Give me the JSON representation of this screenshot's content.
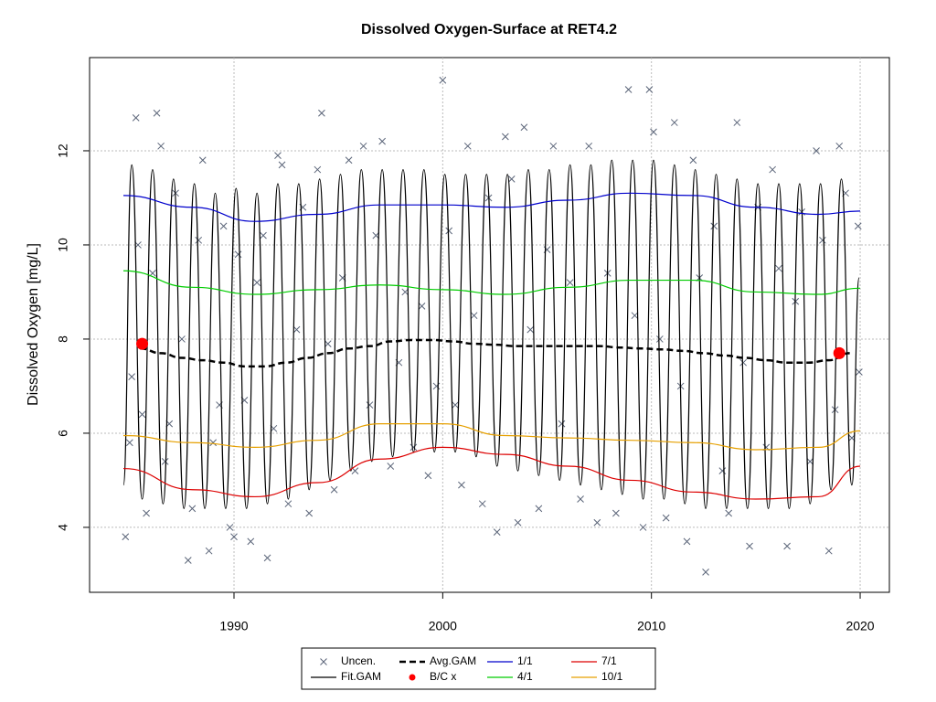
{
  "chart_data": {
    "type": "line",
    "title": "Dissolved Oxygen-Surface at RET4.2",
    "y_label": "Dissolved Oxygen [mg/L]",
    "xlim": [
      1983.08,
      2021.4
    ],
    "ylim": [
      2.62,
      13.98
    ],
    "xticks": [
      1990,
      2000,
      2010,
      2020
    ],
    "yticks": [
      4,
      6,
      8,
      10,
      12
    ],
    "grid": true,
    "legend": "bottom",
    "series": [
      {
        "name": "Uncen.",
        "color": "#5a6478",
        "marker": "x",
        "x": [
          1984.8,
          1985.0,
          1985.1,
          1985.3,
          1985.4,
          1985.6,
          1985.8,
          1986.1,
          1986.3,
          1986.5,
          1986.7,
          1986.9,
          1987.2,
          1987.5,
          1987.8,
          1988.0,
          1988.3,
          1988.5,
          1988.8,
          1989.0,
          1989.3,
          1989.5,
          1989.8,
          1990.0,
          1990.2,
          1990.5,
          1990.8,
          1991.1,
          1991.4,
          1991.6,
          1991.9,
          1992.1,
          1992.3,
          1992.6,
          1993.0,
          1993.3,
          1993.6,
          1994.0,
          1994.2,
          1994.5,
          1994.8,
          1995.2,
          1995.5,
          1995.8,
          1996.2,
          1996.5,
          1996.8,
          1997.1,
          1997.5,
          1997.9,
          1998.2,
          1998.6,
          1999.0,
          1999.3,
          1999.7,
          2000.0,
          2000.3,
          2000.6,
          2000.9,
          2001.2,
          2001.5,
          2001.9,
          2002.2,
          2002.6,
          2003.0,
          2003.3,
          2003.6,
          2003.9,
          2004.2,
          2004.6,
          2005.0,
          2005.3,
          2005.7,
          2006.1,
          2006.6,
          2007.0,
          2007.4,
          2007.9,
          2008.3,
          2008.9,
          2009.2,
          2009.6,
          2009.9,
          2010.1,
          2010.4,
          2010.7,
          2011.1,
          2011.4,
          2011.7,
          2012.0,
          2012.3,
          2012.6,
          2013.0,
          2013.4,
          2013.7,
          2014.1,
          2014.4,
          2014.7,
          2015.1,
          2015.5,
          2015.8,
          2016.1,
          2016.5,
          2016.9,
          2017.2,
          2017.6,
          2017.9,
          2018.2,
          2018.5,
          2018.8,
          2019.0,
          2019.3,
          2019.6,
          2019.9,
          2019.95
        ],
        "values": [
          3.8,
          5.8,
          7.2,
          12.7,
          10.0,
          6.4,
          4.3,
          9.4,
          12.8,
          12.1,
          5.4,
          6.2,
          11.1,
          8.0,
          3.3,
          4.4,
          10.1,
          11.8,
          3.5,
          5.8,
          6.6,
          10.4,
          4.0,
          3.8,
          9.8,
          6.7,
          3.7,
          9.2,
          10.2,
          3.35,
          6.1,
          11.9,
          11.7,
          4.5,
          8.2,
          10.8,
          4.3,
          11.6,
          12.8,
          7.9,
          4.8,
          9.3,
          11.8,
          5.2,
          12.1,
          6.6,
          10.2,
          12.2,
          5.3,
          7.5,
          9.0,
          5.7,
          8.7,
          5.1,
          7.0,
          13.5,
          10.3,
          6.6,
          4.9,
          12.1,
          8.5,
          4.5,
          11.0,
          3.9,
          12.3,
          11.4,
          4.1,
          12.5,
          8.2,
          4.4,
          9.9,
          12.1,
          6.2,
          9.2,
          4.6,
          12.1,
          4.1,
          9.4,
          4.3,
          13.3,
          8.5,
          4.0,
          13.3,
          12.4,
          8.0,
          4.2,
          12.6,
          7.0,
          3.7,
          11.8,
          9.3,
          3.05,
          10.4,
          5.2,
          4.3,
          12.6,
          7.5,
          3.6,
          10.8,
          5.7,
          11.6,
          9.5,
          3.6,
          8.8,
          10.7,
          5.4,
          12.0,
          10.1,
          3.5,
          6.5,
          12.1,
          11.1,
          5.9,
          10.4,
          7.3
        ]
      },
      {
        "name": "Fit.GAM",
        "color": "#000000",
        "marker": "smooth",
        "x": [
          1984.7,
          1985.1,
          1985.6,
          1986.1,
          1986.6,
          1987.1,
          1987.6,
          1988.1,
          1988.6,
          1989.1,
          1989.6,
          1990.1,
          1990.6,
          1991.1,
          1991.6,
          1992.1,
          1992.6,
          1993.1,
          1993.6,
          1994.1,
          1994.6,
          1995.1,
          1995.6,
          1996.1,
          1996.6,
          1997.1,
          1997.6,
          1998.1,
          1998.6,
          1999.1,
          1999.6,
          2000.1,
          2000.6,
          2001.1,
          2001.6,
          2002.1,
          2002.6,
          2003.1,
          2003.6,
          2004.1,
          2004.6,
          2005.1,
          2005.6,
          2006.1,
          2006.6,
          2007.1,
          2007.6,
          2008.1,
          2008.6,
          2009.1,
          2009.6,
          2010.1,
          2010.6,
          2011.1,
          2011.6,
          2012.1,
          2012.6,
          2013.1,
          2013.6,
          2014.1,
          2014.6,
          2015.1,
          2015.6,
          2016.1,
          2016.6,
          2017.1,
          2017.6,
          2018.1,
          2018.6,
          2019.1,
          2019.6,
          2019.95
        ],
        "values": [
          4.9,
          11.7,
          4.6,
          11.6,
          4.5,
          11.4,
          4.4,
          11.3,
          4.4,
          11.1,
          4.4,
          11.2,
          4.4,
          11.1,
          4.5,
          11.3,
          4.6,
          11.3,
          4.8,
          11.4,
          5.0,
          11.5,
          5.2,
          11.6,
          5.4,
          11.6,
          5.5,
          11.6,
          5.6,
          11.6,
          5.6,
          11.5,
          5.6,
          11.5,
          5.5,
          11.5,
          5.3,
          11.5,
          5.2,
          11.6,
          5.1,
          11.6,
          5.0,
          11.7,
          4.9,
          11.7,
          4.8,
          11.8,
          4.7,
          11.8,
          4.6,
          11.8,
          4.6,
          11.7,
          4.5,
          11.6,
          4.4,
          11.5,
          4.4,
          11.4,
          4.4,
          11.3,
          4.4,
          11.3,
          4.4,
          11.3,
          4.5,
          11.3,
          4.8,
          11.4,
          4.9,
          9.3
        ]
      },
      {
        "name": "Avg.GAM",
        "color": "#000000",
        "marker": "dashed",
        "x": [
          1985.5,
          1986.5,
          1987.5,
          1988.5,
          1989.5,
          1990.5,
          1991.5,
          1992.5,
          1993.5,
          1994.5,
          1995.5,
          1996.5,
          1997.5,
          1998.5,
          1999.5,
          2000.5,
          2001.5,
          2002.5,
          2003.5,
          2004.5,
          2005.5,
          2006.5,
          2007.5,
          2008.5,
          2009.5,
          2010.5,
          2011.5,
          2012.5,
          2013.5,
          2014.5,
          2015.5,
          2016.5,
          2017.5,
          2018.5,
          2019.5
        ],
        "values": [
          7.8,
          7.7,
          7.6,
          7.55,
          7.5,
          7.42,
          7.42,
          7.5,
          7.6,
          7.7,
          7.8,
          7.85,
          7.95,
          7.98,
          7.98,
          7.95,
          7.9,
          7.88,
          7.85,
          7.85,
          7.85,
          7.85,
          7.85,
          7.82,
          7.8,
          7.78,
          7.75,
          7.7,
          7.65,
          7.6,
          7.55,
          7.5,
          7.5,
          7.55,
          7.7
        ]
      },
      {
        "name": "B/C x",
        "color": "#ff0000",
        "marker": "circle",
        "x": [
          1985.6,
          2019.0
        ],
        "values": [
          7.9,
          7.7
        ]
      },
      {
        "name": "1/1",
        "color": "#0000cc",
        "marker": "line",
        "x": [
          1984.7,
          1988,
          1991,
          1994,
          1997,
          2000,
          2003,
          2006,
          2009,
          2012,
          2015,
          2018,
          2020
        ],
        "values": [
          11.05,
          10.8,
          10.5,
          10.65,
          10.85,
          10.85,
          10.8,
          10.95,
          11.1,
          11.05,
          10.8,
          10.65,
          10.72
        ]
      },
      {
        "name": "4/1",
        "color": "#00cc00",
        "marker": "line",
        "x": [
          1984.7,
          1988,
          1991,
          1994,
          1997,
          2000,
          2003,
          2006,
          2009,
          2012,
          2015,
          2018,
          2020
        ],
        "values": [
          9.45,
          9.1,
          8.95,
          9.05,
          9.15,
          9.05,
          8.95,
          9.1,
          9.25,
          9.25,
          9.0,
          8.95,
          9.08
        ]
      },
      {
        "name": "7/1",
        "color": "#dd0000",
        "marker": "line",
        "x": [
          1984.7,
          1988,
          1991,
          1994,
          1997,
          2000,
          2003,
          2006,
          2009,
          2012,
          2015,
          2018,
          2020
        ],
        "values": [
          5.25,
          4.8,
          4.65,
          4.95,
          5.45,
          5.7,
          5.55,
          5.3,
          5.0,
          4.75,
          4.6,
          4.65,
          5.3
        ]
      },
      {
        "name": "10/1",
        "color": "#e6a000",
        "marker": "line",
        "x": [
          1984.7,
          1988,
          1991,
          1994,
          1997,
          2000,
          2003,
          2006,
          2009,
          2012,
          2015,
          2018,
          2020
        ],
        "values": [
          5.95,
          5.8,
          5.7,
          5.85,
          6.2,
          6.2,
          5.95,
          5.9,
          5.85,
          5.8,
          5.65,
          5.7,
          6.05
        ]
      }
    ]
  }
}
